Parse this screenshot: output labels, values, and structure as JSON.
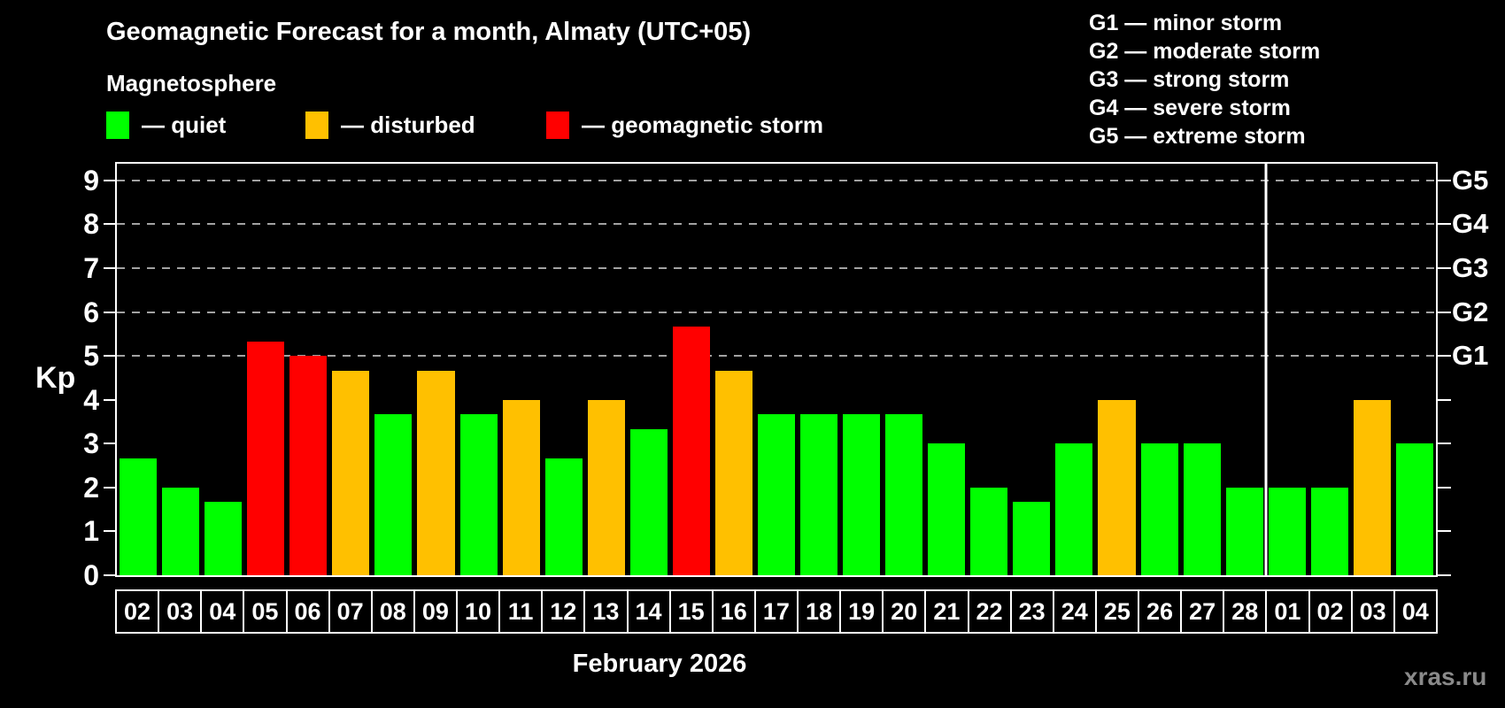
{
  "header": {
    "title": "Geomagnetic Forecast for a month, Almaty (UTC+05)",
    "subtitle": "Magnetosphere",
    "watermark": "xras.ru"
  },
  "legend": {
    "items": [
      {
        "label": "— quiet",
        "color": "#00ff00"
      },
      {
        "label": "— disturbed",
        "color": "#ffc000"
      },
      {
        "label": "— geomagnetic storm",
        "color": "#ff0000"
      }
    ]
  },
  "storm_scale": {
    "items": [
      "G1 — minor storm",
      "G2 — moderate storm",
      "G3 — strong storm",
      "G4 — severe storm",
      "G5 — extreme storm"
    ]
  },
  "chart_data": {
    "type": "bar",
    "title": "Geomagnetic Forecast for a month, Almaty (UTC+05)",
    "xlabel": "February 2026",
    "ylabel": "Kp",
    "ylim": [
      0,
      9.38
    ],
    "yticks": [
      0,
      1,
      2,
      3,
      4,
      5,
      6,
      7,
      8,
      9
    ],
    "gridlines": [
      5,
      6,
      7,
      8,
      9
    ],
    "grid_style": "dashed horizontal lines at storm levels only",
    "legend_position": "top-left",
    "right_axis": [
      {
        "kp": 5,
        "label": "G1"
      },
      {
        "kp": 6,
        "label": "G2"
      },
      {
        "kp": 7,
        "label": "G3"
      },
      {
        "kp": 8,
        "label": "G4"
      },
      {
        "kp": 9,
        "label": "G5"
      }
    ],
    "categories": [
      "02",
      "03",
      "04",
      "05",
      "06",
      "07",
      "08",
      "09",
      "10",
      "11",
      "12",
      "13",
      "14",
      "15",
      "16",
      "17",
      "18",
      "19",
      "20",
      "21",
      "22",
      "23",
      "24",
      "25",
      "26",
      "27",
      "28",
      "01",
      "02",
      "03",
      "04"
    ],
    "values": [
      2.67,
      2.0,
      1.67,
      5.33,
      5.0,
      4.67,
      3.67,
      4.67,
      3.67,
      4.0,
      2.67,
      4.0,
      3.33,
      5.67,
      4.67,
      3.67,
      3.67,
      3.67,
      3.67,
      3.0,
      2.0,
      1.67,
      3.0,
      4.0,
      3.0,
      3.0,
      2.0,
      2.0,
      2.0,
      4.0,
      3.0
    ],
    "statuses": [
      "quiet",
      "quiet",
      "quiet",
      "storm",
      "storm",
      "disturbed",
      "quiet",
      "disturbed",
      "quiet",
      "disturbed",
      "quiet",
      "disturbed",
      "quiet",
      "storm",
      "disturbed",
      "quiet",
      "quiet",
      "quiet",
      "quiet",
      "quiet",
      "quiet",
      "quiet",
      "quiet",
      "disturbed",
      "quiet",
      "quiet",
      "quiet",
      "quiet",
      "quiet",
      "disturbed",
      "quiet"
    ],
    "status_colors": {
      "quiet": "#00ff00",
      "disturbed": "#ffc000",
      "storm": "#ff0000"
    },
    "month_divider_after_index": 26
  }
}
